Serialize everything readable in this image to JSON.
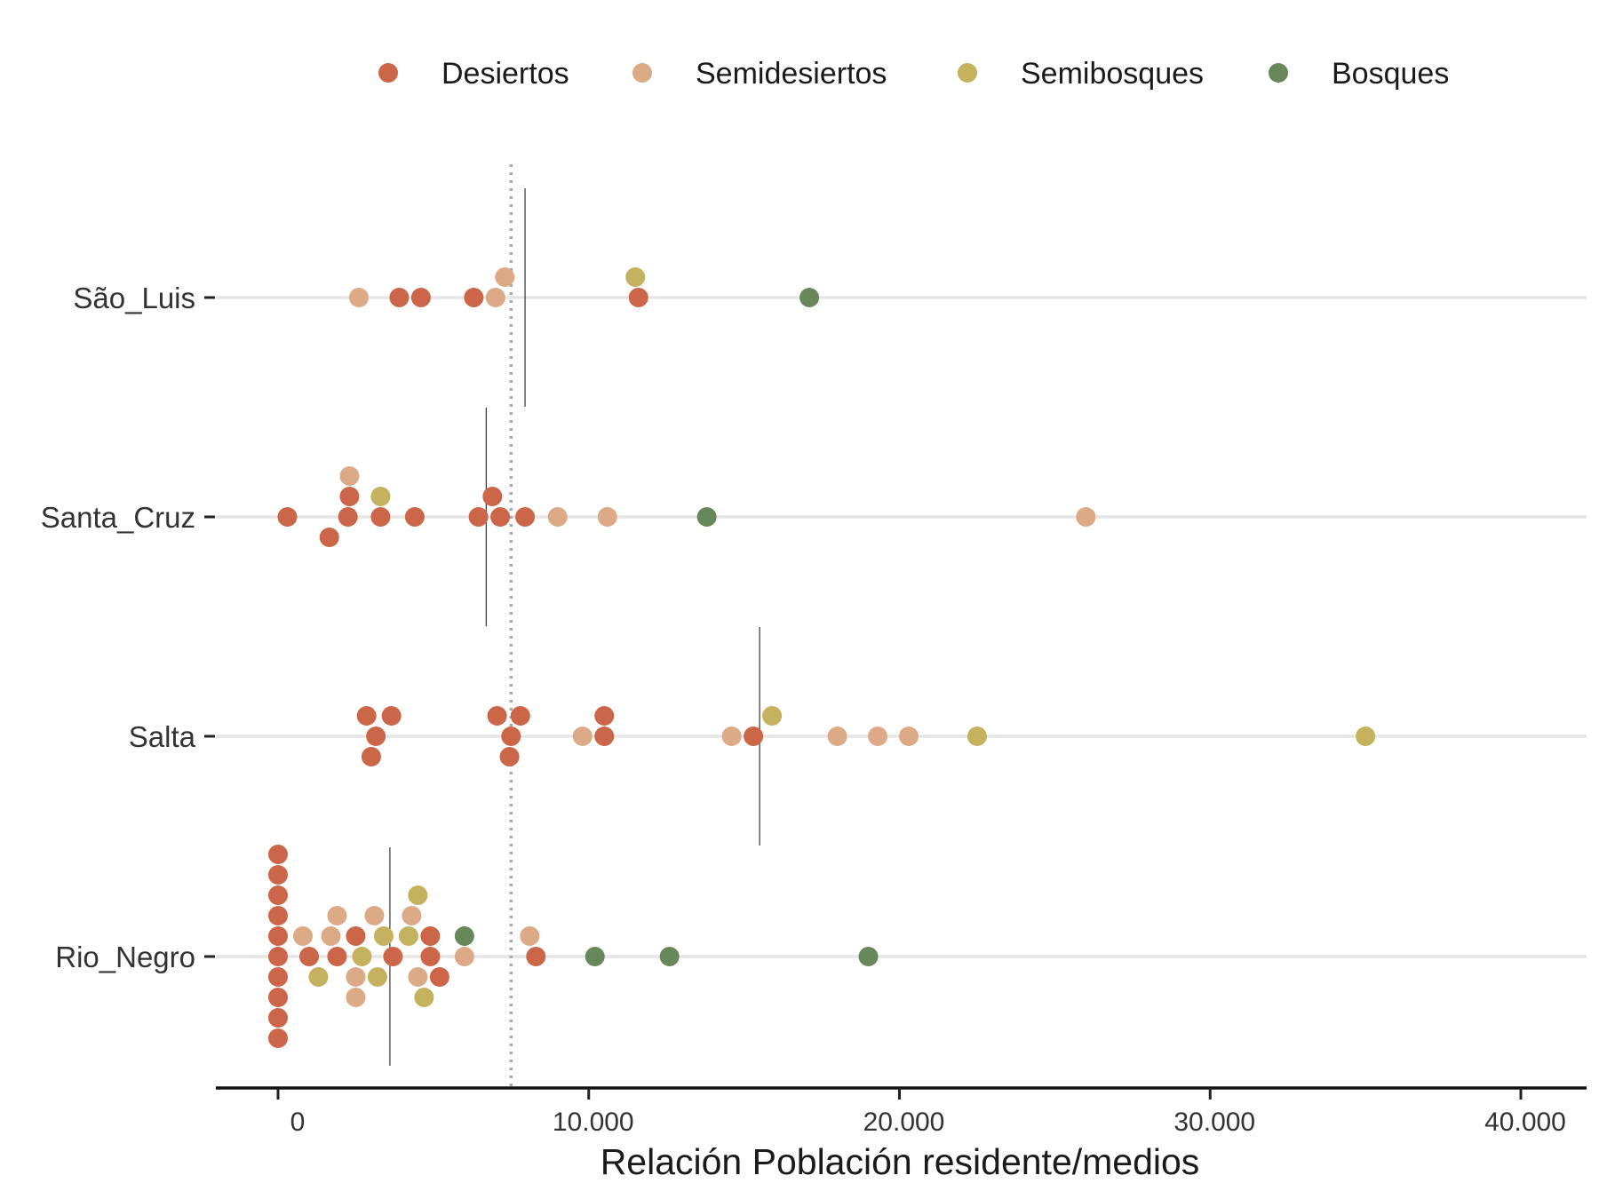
{
  "chart_data": {
    "type": "scatter",
    "xlabel": "Relación Población residente/medios",
    "ylabel": "",
    "xlim": [
      -2000,
      42000
    ],
    "x_ticks": [
      0,
      10000,
      20000,
      30000,
      40000
    ],
    "x_tick_labels": [
      "0",
      "10.000",
      "20.000",
      "30.000",
      "40.000"
    ],
    "categories": [
      "São_Luis",
      "Santa_Cruz",
      "Salta",
      "Rio_Negro"
    ],
    "legend": {
      "position": "top",
      "entries": [
        "Desiertos",
        "Semidesiertos",
        "Semibosques",
        "Bosques"
      ]
    },
    "colors": {
      "Desiertos": "#cc6648",
      "Semidesiertos": "#ddaa88",
      "Semibosques": "#c4b25e",
      "Bosques": "#67885a"
    },
    "grid": "horizontal",
    "overall_reference_line": {
      "value": 7500,
      "style": "dotted"
    },
    "group_reference_lines": {
      "São_Luis": 7950,
      "Santa_Cruz": 6700,
      "Salta": 15500,
      "Rio_Negro": 3600
    },
    "series": [
      {
        "name": "Desiertos",
        "points": [
          {
            "group": "São_Luis",
            "x": 4600
          },
          {
            "group": "São_Luis",
            "x": 3900
          },
          {
            "group": "São_Luis",
            "x": 6300
          },
          {
            "group": "São_Luis",
            "x": 11600
          },
          {
            "group": "Santa_Cruz",
            "x": 3300
          },
          {
            "group": "Santa_Cruz",
            "x": 2250
          },
          {
            "group": "Santa_Cruz",
            "x": 2300
          },
          {
            "group": "Santa_Cruz",
            "x": 300
          },
          {
            "group": "Santa_Cruz",
            "x": 1650
          },
          {
            "group": "Santa_Cruz",
            "x": 4400
          },
          {
            "group": "Santa_Cruz",
            "x": 7150
          },
          {
            "group": "Santa_Cruz",
            "x": 6450
          },
          {
            "group": "Santa_Cruz",
            "x": 6900
          },
          {
            "group": "Santa_Cruz",
            "x": 7950
          },
          {
            "group": "Salta",
            "x": 7500
          },
          {
            "group": "Salta",
            "x": 10500
          },
          {
            "group": "Salta",
            "x": 3150
          },
          {
            "group": "Salta",
            "x": 7050
          },
          {
            "group": "Salta",
            "x": 15300
          },
          {
            "group": "Salta",
            "x": 2850
          },
          {
            "group": "Salta",
            "x": 7450
          },
          {
            "group": "Salta",
            "x": 10500
          },
          {
            "group": "Salta",
            "x": 3000
          },
          {
            "group": "Salta",
            "x": 3650
          },
          {
            "group": "Salta",
            "x": 7800
          },
          {
            "group": "Rio_Negro",
            "x": 0
          },
          {
            "group": "Rio_Negro",
            "x": 0
          },
          {
            "group": "Rio_Negro",
            "x": 0
          },
          {
            "group": "Rio_Negro",
            "x": 0
          },
          {
            "group": "Rio_Negro",
            "x": 0
          },
          {
            "group": "Rio_Negro",
            "x": 0
          },
          {
            "group": "Rio_Negro",
            "x": 0
          },
          {
            "group": "Rio_Negro",
            "x": 0
          },
          {
            "group": "Rio_Negro",
            "x": 0
          },
          {
            "group": "Rio_Negro",
            "x": 0
          },
          {
            "group": "Rio_Negro",
            "x": 1900
          },
          {
            "group": "Rio_Negro",
            "x": 4900
          },
          {
            "group": "Rio_Negro",
            "x": 2500
          },
          {
            "group": "Rio_Negro",
            "x": 4900
          },
          {
            "group": "Rio_Negro",
            "x": 1000
          },
          {
            "group": "Rio_Negro",
            "x": 3700
          },
          {
            "group": "Rio_Negro",
            "x": 5200
          },
          {
            "group": "Rio_Negro",
            "x": 8300
          }
        ]
      },
      {
        "name": "Semidesiertos",
        "points": [
          {
            "group": "São_Luis",
            "x": 7000
          },
          {
            "group": "São_Luis",
            "x": 2600
          },
          {
            "group": "São_Luis",
            "x": 7300
          },
          {
            "group": "Santa_Cruz",
            "x": 9000
          },
          {
            "group": "Santa_Cruz",
            "x": 10600
          },
          {
            "group": "Santa_Cruz",
            "x": 26000
          },
          {
            "group": "Santa_Cruz",
            "x": 2300
          },
          {
            "group": "Salta",
            "x": 18000
          },
          {
            "group": "Salta",
            "x": 9800
          },
          {
            "group": "Salta",
            "x": 20300
          },
          {
            "group": "Salta",
            "x": 14600
          },
          {
            "group": "Salta",
            "x": 19300
          },
          {
            "group": "Rio_Negro",
            "x": 800
          },
          {
            "group": "Rio_Negro",
            "x": 4500
          },
          {
            "group": "Rio_Negro",
            "x": 2500
          },
          {
            "group": "Rio_Negro",
            "x": 3100
          },
          {
            "group": "Rio_Negro",
            "x": 4300
          },
          {
            "group": "Rio_Negro",
            "x": 1700
          },
          {
            "group": "Rio_Negro",
            "x": 6000
          },
          {
            "group": "Rio_Negro",
            "x": 2500
          },
          {
            "group": "Rio_Negro",
            "x": 1900
          },
          {
            "group": "Rio_Negro",
            "x": 8100
          }
        ]
      },
      {
        "name": "Semibosques",
        "points": [
          {
            "group": "São_Luis",
            "x": 11500
          },
          {
            "group": "Santa_Cruz",
            "x": 3300
          },
          {
            "group": "Salta",
            "x": 35000
          },
          {
            "group": "Salta",
            "x": 15900
          },
          {
            "group": "Salta",
            "x": 22500
          },
          {
            "group": "Rio_Negro",
            "x": 3400
          },
          {
            "group": "Rio_Negro",
            "x": 4700
          },
          {
            "group": "Rio_Negro",
            "x": 1300
          },
          {
            "group": "Rio_Negro",
            "x": 3200
          },
          {
            "group": "Rio_Negro",
            "x": 4200
          },
          {
            "group": "Rio_Negro",
            "x": 4500
          },
          {
            "group": "Rio_Negro",
            "x": 2700
          }
        ]
      },
      {
        "name": "Bosques",
        "points": [
          {
            "group": "São_Luis",
            "x": 17100
          },
          {
            "group": "Santa_Cruz",
            "x": 13800
          },
          {
            "group": "Rio_Negro",
            "x": 6000
          },
          {
            "group": "Rio_Negro",
            "x": 10200
          },
          {
            "group": "Rio_Negro",
            "x": 12600
          },
          {
            "group": "Rio_Negro",
            "x": 19000
          }
        ]
      }
    ]
  }
}
